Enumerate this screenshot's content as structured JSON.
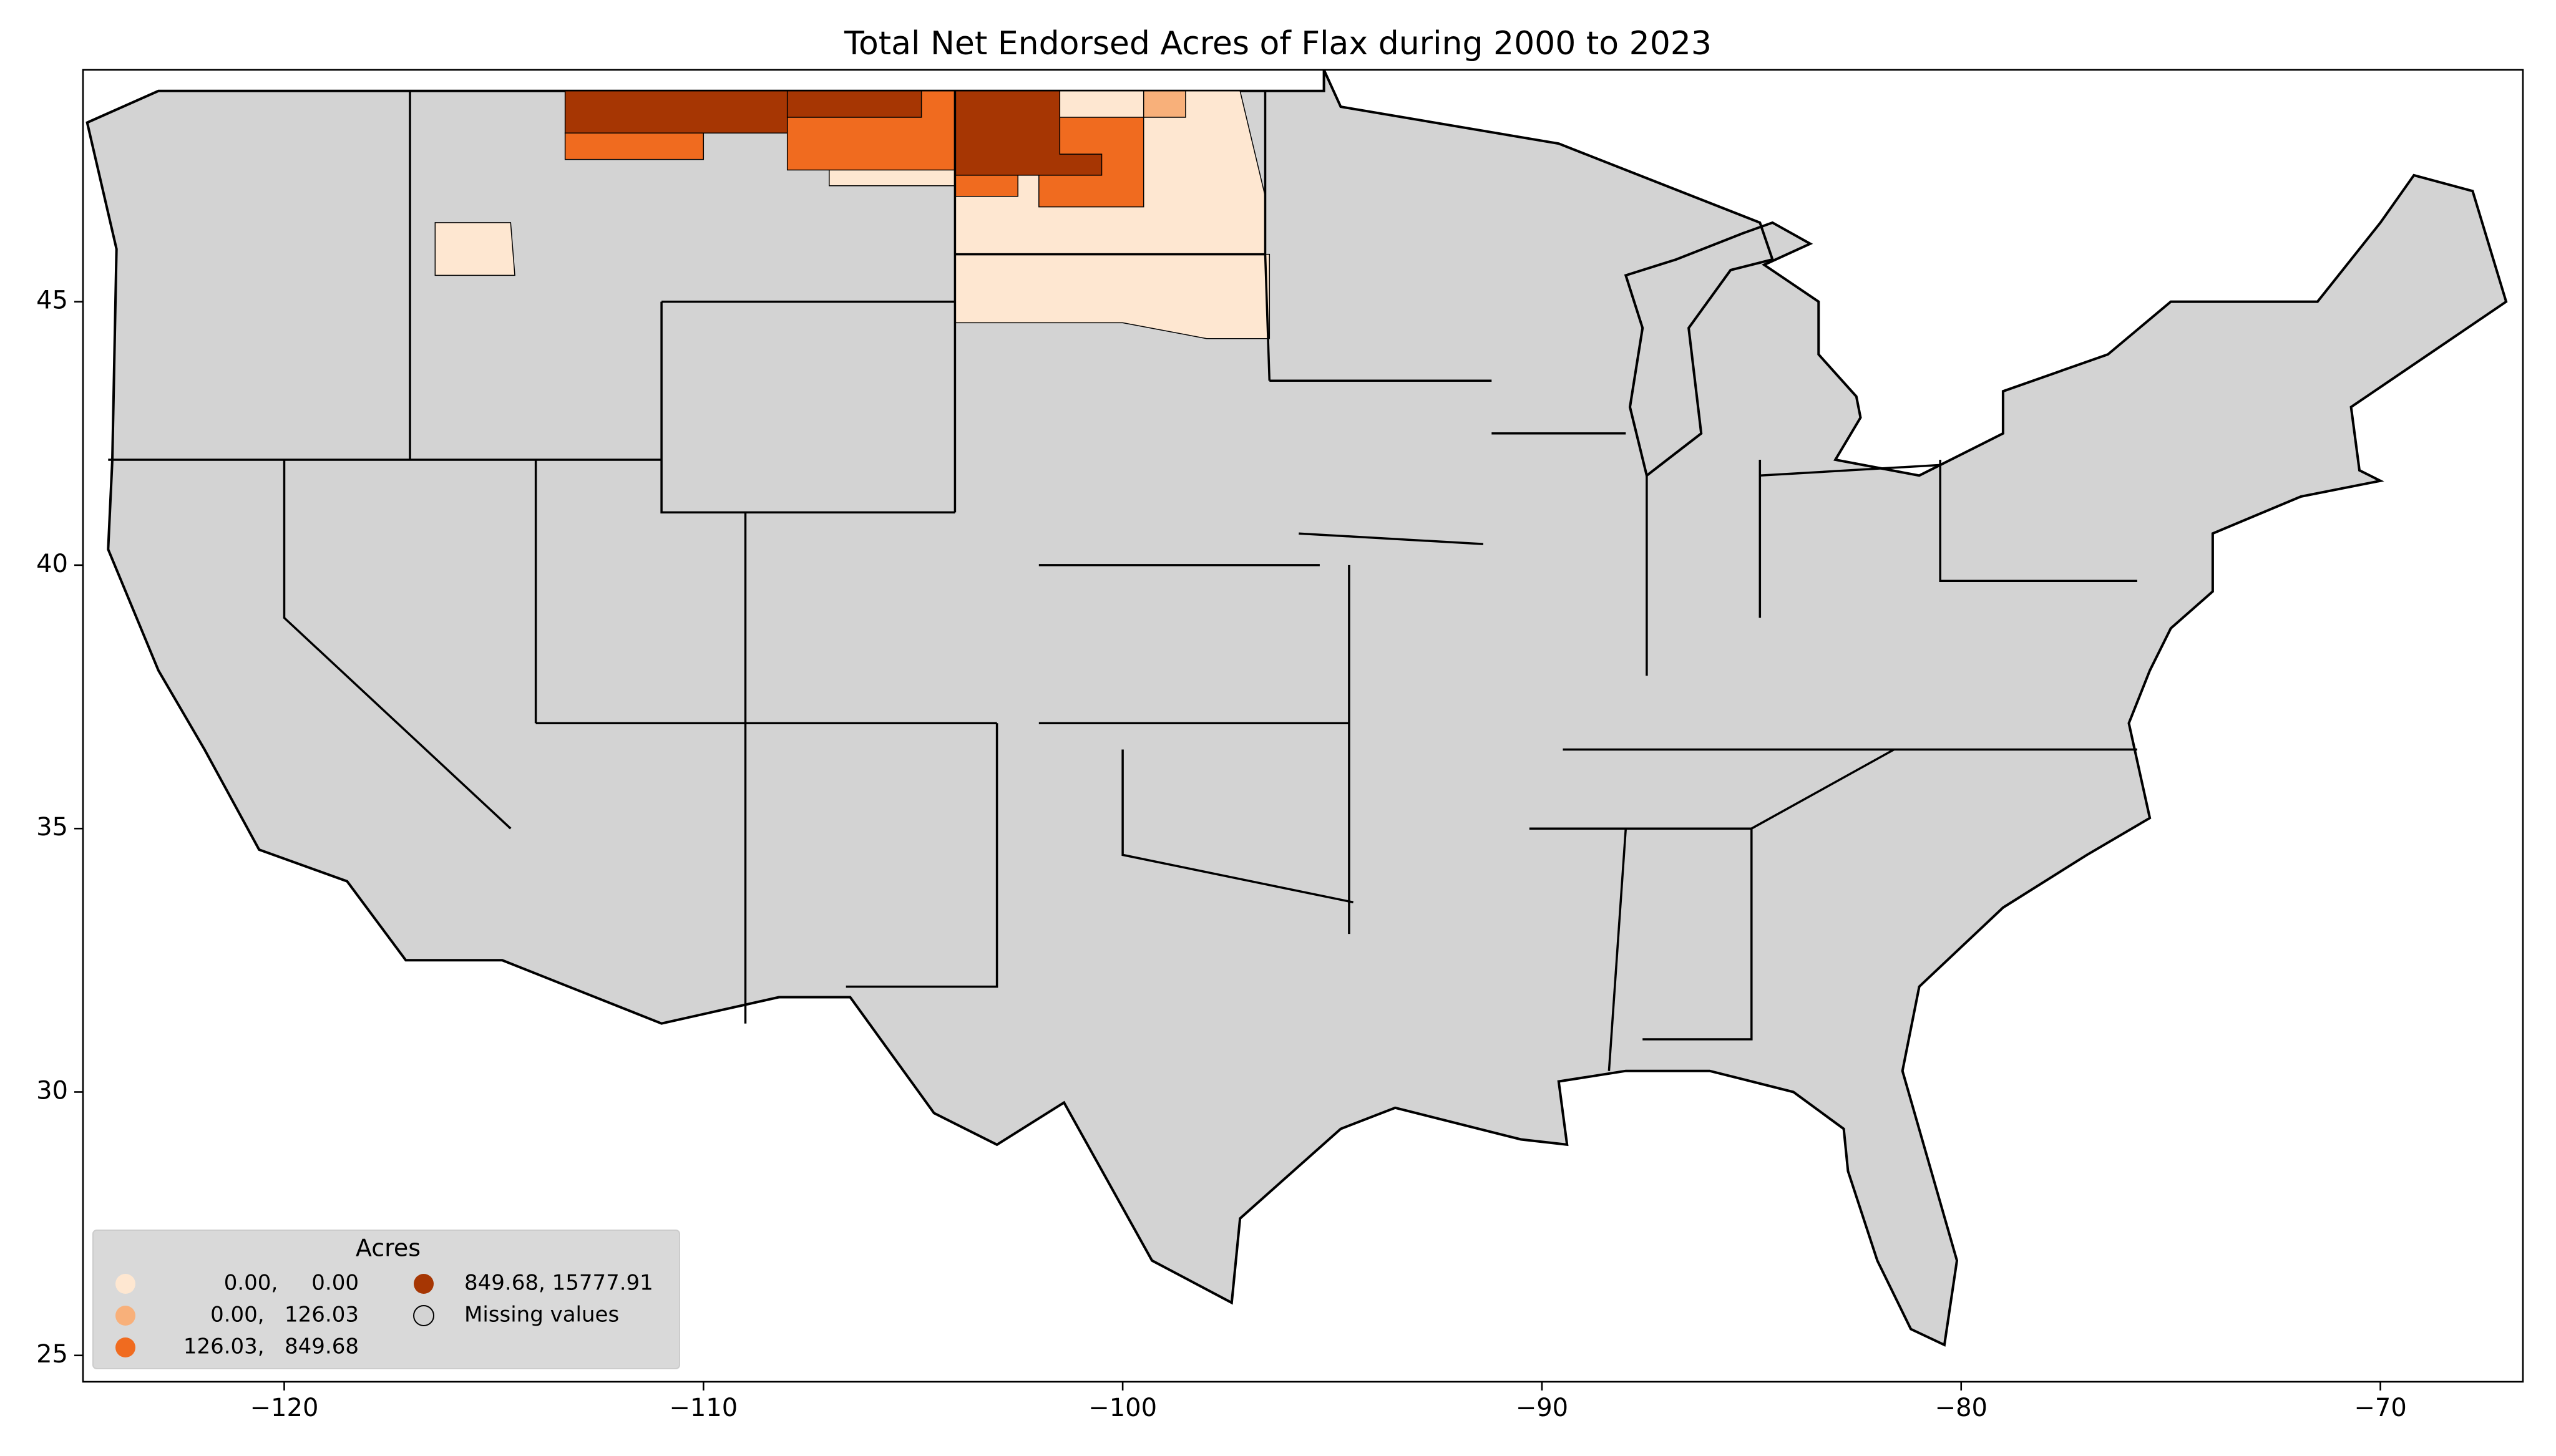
{
  "chart_data": {
    "type": "choropleth",
    "title": "Total Net Endorsed Acres of Flax during 2000 to 2023",
    "xlim": [
      -124.8,
      -66.6
    ],
    "ylim": [
      24.5,
      49.4
    ],
    "xticks": [
      {
        "value": -120,
        "label": "−120"
      },
      {
        "value": -110,
        "label": "−110"
      },
      {
        "value": -100,
        "label": "−100"
      },
      {
        "value": -90,
        "label": "−90"
      },
      {
        "value": -80,
        "label": "−80"
      },
      {
        "value": -70,
        "label": "−70"
      }
    ],
    "yticks": [
      25,
      30,
      35,
      40,
      45
    ],
    "missing_color": "#d3d3d3",
    "legend": {
      "title": "Acres",
      "location": "lower left",
      "entries": [
        {
          "label": "0.00,     0.00",
          "color": "#fee7d1"
        },
        {
          "label": "0.00,   126.03",
          "color": "#f8b07a"
        },
        {
          "label": "126.03,   849.68",
          "color": "#f06b1f"
        },
        {
          "label": "849.68, 15777.91",
          "color": "#a63603"
        },
        {
          "label": "Missing values",
          "color": "#d3d3d3"
        }
      ]
    }
  }
}
